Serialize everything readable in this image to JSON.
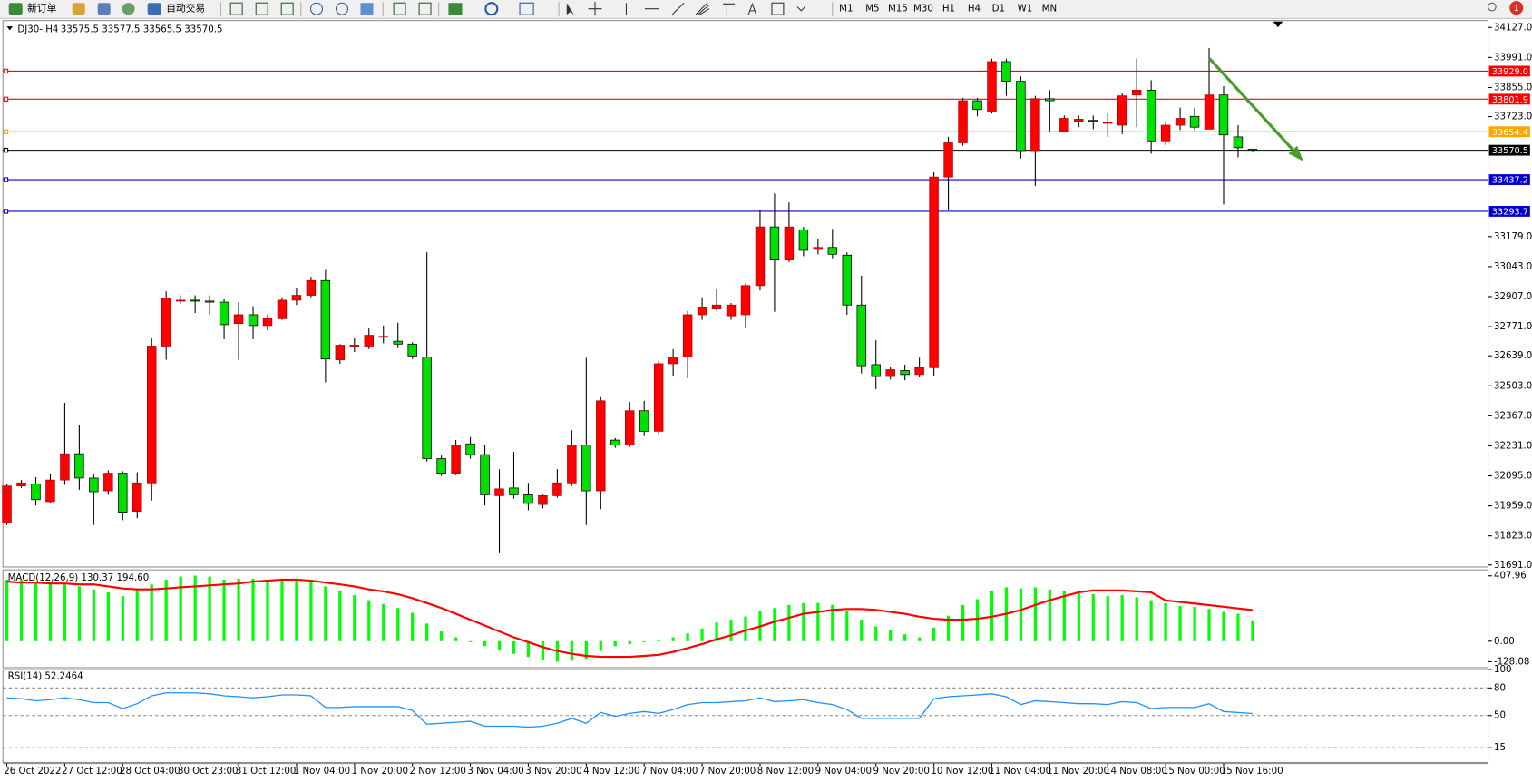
{
  "toolbar": {
    "new_order": "新订单",
    "auto_trading": "自动交易",
    "timeframes": [
      "M1",
      "M5",
      "M15",
      "M30",
      "H1",
      "H4",
      "D1",
      "W1",
      "MN"
    ],
    "badge": "1"
  },
  "chart_data": [
    {
      "type": "candlestick",
      "title": "DJ30-,H4",
      "subtitle": "33575.5 33577.5 33565.5 33570.5",
      "categories": [
        "26 Oct 2022",
        null,
        null,
        null,
        "27 Oct 12:00",
        null,
        null,
        null,
        "28 Oct 04:00",
        null,
        null,
        null,
        "30 Oct 23:00",
        null,
        null,
        null,
        "31 Oct 12:00",
        null,
        null,
        null,
        "1 Nov 04:00",
        null,
        null,
        null,
        "1 Nov 20:00",
        null,
        null,
        null,
        "2 Nov 12:00",
        null,
        null,
        null,
        "3 Nov 04:00",
        null,
        null,
        null,
        "3 Nov 20:00",
        null,
        null,
        null,
        "4 Nov 12:00",
        null,
        null,
        null,
        "7 Nov 04:00",
        null,
        null,
        null,
        "7 Nov 20:00",
        null,
        null,
        null,
        "8 Nov 12:00",
        null,
        null,
        null,
        "9 Nov 04:00",
        null,
        null,
        null,
        "9 Nov 20:00",
        null,
        null,
        null,
        "10 Nov 12:00",
        null,
        null,
        null,
        "11 Nov 04:00",
        null,
        null,
        null,
        "11 Nov 20:00",
        null,
        null,
        null,
        "14 Nov 08:00",
        null,
        null,
        null,
        "15 Nov 00:00",
        null,
        null,
        null,
        "15 Nov 16:00",
        null,
        null
      ],
      "open": [
        31881,
        32049,
        32058,
        31978,
        32076,
        32195,
        32085,
        32027,
        32107,
        31934,
        32063,
        32683,
        32887,
        32891,
        32887,
        32882,
        32785,
        32825,
        32776,
        32807,
        32891,
        32913,
        32980,
        32621,
        32683,
        32683,
        32723,
        32705,
        32692,
        32634,
        32173,
        32107,
        32240,
        32191,
        32005,
        32040,
        32009,
        31965,
        32005,
        32063,
        32235,
        32027,
        32257,
        32235,
        32390,
        32297,
        32603,
        32634,
        32825,
        32851,
        32820,
        32825,
        32957,
        33223,
        33073,
        33210,
        33121,
        33130,
        33095,
        32869,
        32599,
        32545,
        32572,
        32554,
        32585,
        33449,
        33604,
        33795,
        33746,
        33972,
        33883,
        33569,
        33804,
        33657,
        33702,
        33706,
        33693,
        33684,
        33821,
        33843,
        33613,
        33684,
        33724,
        33666,
        33821,
        33631,
        33575.5
      ],
      "high": [
        32058,
        32076,
        32089,
        32102,
        32426,
        32324,
        32102,
        32120,
        32116,
        32111,
        32718,
        32931,
        32913,
        32913,
        32913,
        32895,
        32882,
        32864,
        32825,
        32904,
        32944,
        32997,
        33028,
        32692,
        32718,
        32763,
        32776,
        32789,
        32700,
        33108,
        32187,
        32257,
        32271,
        32235,
        32125,
        32204,
        32063,
        32014,
        32125,
        32302,
        32630,
        32452,
        32266,
        32430,
        32435,
        32616,
        32669,
        32842,
        32904,
        32940,
        32878,
        32966,
        33299,
        33374,
        33334,
        33223,
        33166,
        33214,
        33108,
        33002,
        32709,
        32590,
        32599,
        32630,
        33471,
        33631,
        33808,
        33808,
        33985,
        33985,
        33905,
        33817,
        33843,
        33728,
        33728,
        33728,
        33737,
        33830,
        33985,
        33888,
        33697,
        33764,
        33764,
        34034,
        33861,
        33684,
        33577.5
      ],
      "low": [
        31872,
        32040,
        31961,
        31970,
        32054,
        32032,
        31872,
        32009,
        31894,
        31903,
        31983,
        32621,
        32873,
        32833,
        32825,
        32714,
        32621,
        32714,
        32754,
        32802,
        32869,
        32904,
        32519,
        32603,
        32656,
        32669,
        32696,
        32674,
        32625,
        32160,
        32094,
        32098,
        32173,
        31961,
        31744,
        31992,
        31939,
        31947,
        31996,
        32049,
        31872,
        31943,
        32222,
        32226,
        32275,
        32284,
        32545,
        32537,
        32802,
        32842,
        32802,
        32763,
        32935,
        32838,
        33064,
        33090,
        33099,
        33081,
        32825,
        32559,
        32488,
        32532,
        32528,
        32541,
        32550,
        33299,
        33591,
        33724,
        33737,
        33817,
        33533,
        33409,
        33657,
        33653,
        33675,
        33666,
        33631,
        33644,
        33675,
        33555,
        33595,
        33662,
        33662,
        33666,
        33325,
        33538,
        33565.5
      ],
      "close": [
        32049,
        32063,
        31987,
        32076,
        32195,
        32085,
        32023,
        32107,
        31930,
        32063,
        32683,
        32900,
        32891,
        32887,
        32882,
        32780,
        32825,
        32776,
        32807,
        32891,
        32913,
        32980,
        32625,
        32687,
        32687,
        32732,
        32727,
        32692,
        32638,
        32173,
        32107,
        32235,
        32191,
        32009,
        32036,
        32009,
        31970,
        32005,
        32063,
        32235,
        32027,
        32435,
        32235,
        32390,
        32297,
        32603,
        32634,
        32825,
        32860,
        32869,
        32869,
        32957,
        33223,
        33073,
        33223,
        33117,
        33130,
        33099,
        32869,
        32594,
        32545,
        32576,
        32554,
        32585,
        33449,
        33604,
        33795,
        33755,
        33972,
        33883,
        33569,
        33804,
        33795,
        33715,
        33711,
        33702,
        33697,
        33817,
        33843,
        33613,
        33684,
        33715,
        33675,
        33821,
        33640,
        33582,
        33570.5
      ],
      "up_color": "#ff0000",
      "down_color": "#00e000",
      "ylim": [
        31682,
        34154
      ],
      "yticks": [
        {
          "value": 34127,
          "label": "34127.0"
        },
        {
          "value": 33991,
          "label": "33991.0"
        },
        {
          "value": 33855,
          "label": "33855.0"
        },
        {
          "value": 33723,
          "label": "33723.0"
        },
        {
          "value": 33179,
          "label": "33179.0"
        },
        {
          "value": 33043,
          "label": "33043.0"
        },
        {
          "value": 32907,
          "label": "32907.0"
        },
        {
          "value": 32771,
          "label": "32771.0"
        },
        {
          "value": 32639,
          "label": "32639.0"
        },
        {
          "value": 32503,
          "label": "32503.0"
        },
        {
          "value": 32367,
          "label": "32367.0"
        },
        {
          "value": 32231,
          "label": "32231.0"
        },
        {
          "value": 32095,
          "label": "32095.0"
        },
        {
          "value": 31959,
          "label": "31959.0"
        },
        {
          "value": 31823,
          "label": "31823.0"
        },
        {
          "value": 31691,
          "label": "31691.0"
        }
      ],
      "hlines": [
        {
          "value": 33929,
          "label": "33929.0",
          "color": "#ff0000"
        },
        {
          "value": 33801.9,
          "label": "33801.9",
          "color": "#ff0000"
        },
        {
          "value": 33654.4,
          "label": "33654.4",
          "color": "#ffa500"
        },
        {
          "value": 33570.5,
          "label": "33570.5",
          "color": "#000000"
        },
        {
          "value": 33437.2,
          "label": "33437.2",
          "color": "#0000cd"
        },
        {
          "value": 33293.7,
          "label": "33293.7",
          "color": "#0000cd"
        }
      ]
    },
    {
      "type": "macd",
      "title": "MACD(12,26,9) 130.37 194.60",
      "series": [
        {
          "kind": "bar",
          "color": "#00ff00",
          "values": [
            384,
            384,
            372,
            366,
            354,
            342,
            323,
            305,
            281,
            323,
            354,
            384,
            403,
            409,
            403,
            384,
            390,
            390,
            384,
            378,
            378,
            372,
            342,
            317,
            287,
            256,
            232,
            207,
            177,
            110,
            61,
            24,
            -6,
            -31,
            -55,
            -79,
            -98,
            -116,
            -128,
            -122,
            -110,
            -61,
            -31,
            -18,
            -6,
            6,
            24,
            49,
            79,
            116,
            134,
            153,
            189,
            207,
            226,
            238,
            238,
            226,
            189,
            134,
            92,
            67,
            43,
            24,
            85,
            159,
            226,
            262,
            311,
            336,
            329,
            336,
            323,
            311,
            299,
            293,
            281,
            287,
            275,
            256,
            238,
            220,
            214,
            201,
            183,
            171,
            130.37
          ]
        },
        {
          "kind": "line",
          "color": "#ff0000",
          "values": [
            372,
            366,
            366,
            360,
            360,
            354,
            354,
            342,
            329,
            323,
            323,
            329,
            336,
            342,
            348,
            354,
            360,
            372,
            378,
            384,
            384,
            378,
            366,
            354,
            342,
            323,
            311,
            293,
            268,
            238,
            207,
            171,
            134,
            98,
            61,
            24,
            -6,
            -37,
            -61,
            -79,
            -92,
            -98,
            -98,
            -98,
            -92,
            -85,
            -67,
            -43,
            -18,
            12,
            37,
            67,
            92,
            122,
            146,
            171,
            183,
            195,
            201,
            201,
            195,
            183,
            171,
            153,
            140,
            134,
            134,
            140,
            153,
            171,
            195,
            226,
            256,
            281,
            305,
            317,
            317,
            317,
            311,
            305,
            255,
            245,
            235,
            225,
            215,
            205,
            194.6
          ]
        }
      ],
      "ylim": [
        -165,
        439
      ],
      "yticks": [
        407.96,
        {
          "value": 0,
          "label": "0.00"
        },
        -128.08
      ]
    },
    {
      "type": "line",
      "title": "RSI(14) 52.2464",
      "color": "#1e90ff",
      "values": [
        69.3,
        68.3,
        66.1,
        67.2,
        69.3,
        67.2,
        64.0,
        64.0,
        57.6,
        62.9,
        71.5,
        74.7,
        74.7,
        74.7,
        73.6,
        71.5,
        70.4,
        69.3,
        70.4,
        72.5,
        72.5,
        71.5,
        58.7,
        58.7,
        59.7,
        59.7,
        59.7,
        59.7,
        55.5,
        40.5,
        41.6,
        42.7,
        43.7,
        38.4,
        38.4,
        38.4,
        37.3,
        38.4,
        41.6,
        46.9,
        41.6,
        53.3,
        49.1,
        52.3,
        54.4,
        52.3,
        56.5,
        61.9,
        64.0,
        64.0,
        65.1,
        66.1,
        69.3,
        65.1,
        66.1,
        67.2,
        64.0,
        61.9,
        56.5,
        46.9,
        46.9,
        46.9,
        46.9,
        46.9,
        68.3,
        70.4,
        71.5,
        72.5,
        73.6,
        70.4,
        61.9,
        66.1,
        65.1,
        64.0,
        62.9,
        62.9,
        61.9,
        65.1,
        64.0,
        57.6,
        58.7,
        58.7,
        58.7,
        62.9,
        54.4,
        53.3,
        52.2464
      ],
      "ylim": [
        0,
        100
      ],
      "yticks": [
        100,
        80,
        50,
        15
      ]
    }
  ]
}
